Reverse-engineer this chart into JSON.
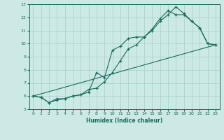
{
  "xlabel": "Humidex (Indice chaleur)",
  "ylabel": "",
  "bg_color": "#cce9e5",
  "line_color": "#1a6b5e",
  "grid_color": "#aad4ce",
  "xlim": [
    -0.5,
    23.5
  ],
  "ylim": [
    5,
    13
  ],
  "xticks": [
    0,
    1,
    2,
    3,
    4,
    5,
    6,
    7,
    8,
    9,
    10,
    11,
    12,
    13,
    14,
    15,
    16,
    17,
    18,
    19,
    20,
    21,
    22,
    23
  ],
  "yticks": [
    5,
    6,
    7,
    8,
    9,
    10,
    11,
    12,
    13
  ],
  "line1_x": [
    0,
    1,
    2,
    3,
    4,
    5,
    6,
    7,
    8,
    9,
    10,
    11,
    12,
    13,
    14,
    15,
    16,
    17,
    18,
    19,
    20,
    21,
    22,
    23
  ],
  "line1_y": [
    6.0,
    5.9,
    5.5,
    5.7,
    5.8,
    6.0,
    6.1,
    6.5,
    6.6,
    7.1,
    7.8,
    8.7,
    9.6,
    9.9,
    10.5,
    11.1,
    11.9,
    12.5,
    12.2,
    12.2,
    11.7,
    11.2,
    10.0,
    9.9
  ],
  "line2_x": [
    0,
    1,
    2,
    3,
    4,
    5,
    6,
    7,
    8,
    9,
    10,
    11,
    12,
    13,
    14,
    15,
    16,
    17,
    18,
    19,
    20,
    21,
    22,
    23
  ],
  "line2_y": [
    6.0,
    5.9,
    5.5,
    5.8,
    5.8,
    6.0,
    6.1,
    6.3,
    7.8,
    7.4,
    9.5,
    9.8,
    10.4,
    10.5,
    10.5,
    11.0,
    11.7,
    12.2,
    12.8,
    12.3,
    11.7,
    11.2,
    10.0,
    9.9
  ],
  "line3_x": [
    0,
    23
  ],
  "line3_y": [
    6.0,
    9.9
  ]
}
